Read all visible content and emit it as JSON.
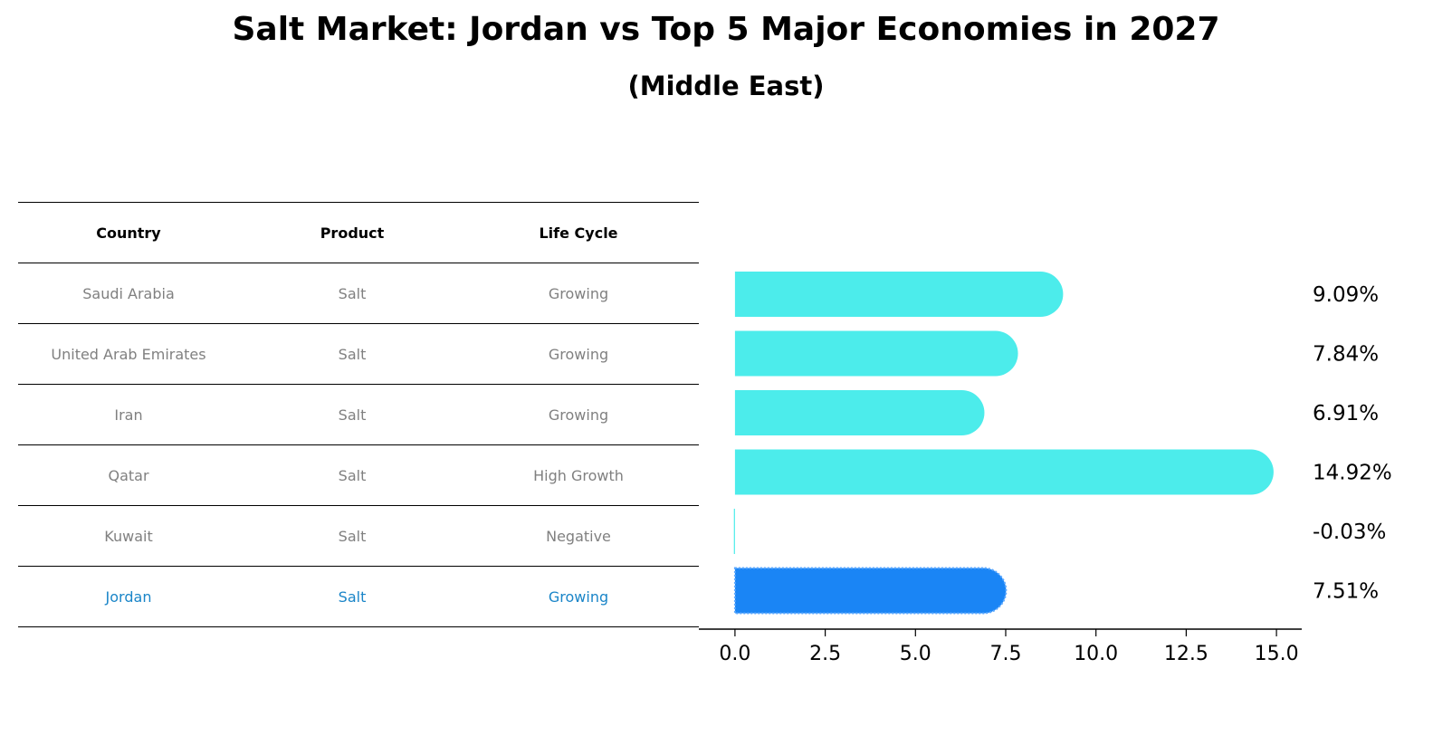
{
  "title": "Salt Market: Jordan vs Top 5 Major Economies in 2027",
  "subtitle": "(Middle East)",
  "table": {
    "headers": [
      "Country",
      "Product",
      "Life Cycle"
    ],
    "rows": [
      [
        "Saudi Arabia",
        "Salt",
        "Growing"
      ],
      [
        "United Arab Emirates",
        "Salt",
        "Growing"
      ],
      [
        "Iran",
        "Salt",
        "Growing"
      ],
      [
        "Qatar",
        "Salt",
        "High Growth"
      ],
      [
        "Kuwait",
        "Salt",
        "Negative"
      ],
      [
        "Jordan",
        "Salt",
        "Growing"
      ]
    ],
    "highlight_color": "#1a85c8",
    "text_color": "#808080"
  },
  "chart_data": {
    "type": "bar",
    "orientation": "horizontal",
    "categories": [
      "Saudi Arabia",
      "United Arab Emirates",
      "Iran",
      "Qatar",
      "Kuwait",
      "Jordan"
    ],
    "values": [
      9.09,
      7.84,
      6.91,
      14.92,
      -0.03,
      7.51
    ],
    "value_labels": [
      "9.09%",
      "7.84%",
      "6.91%",
      "14.92%",
      "-0.03%",
      "7.51%"
    ],
    "colors": [
      "#4ceceb",
      "#4ceceb",
      "#4ceceb",
      "#4ceceb",
      "#4ceceb",
      "#1a85f5"
    ],
    "highlight_index": 5,
    "xlim": [
      -0.8,
      15.7
    ],
    "xticks": [
      0.0,
      2.5,
      5.0,
      7.5,
      10.0,
      12.5,
      15.0
    ],
    "xtick_labels": [
      "0.0",
      "2.5",
      "5.0",
      "7.5",
      "10.0",
      "12.5",
      "15.0"
    ],
    "grid": false,
    "legend": "none"
  }
}
